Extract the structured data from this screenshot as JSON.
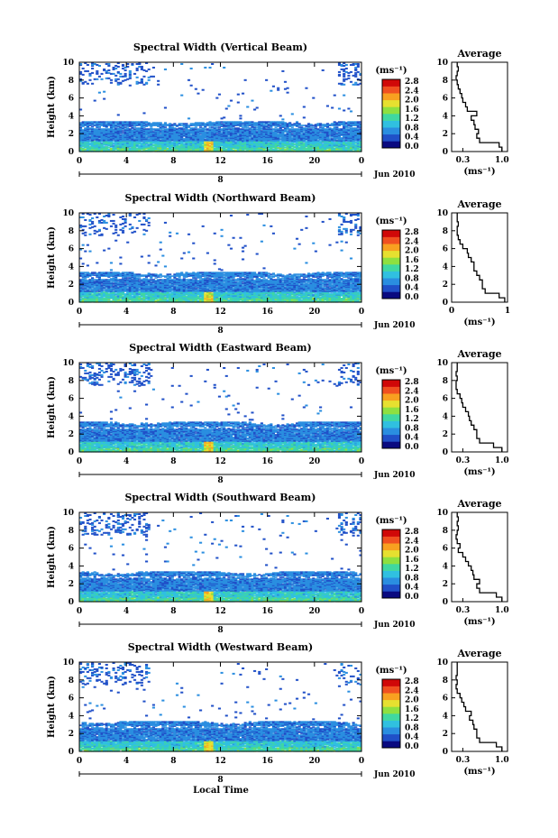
{
  "figure": {
    "x_axis_label": "Local Time",
    "x_ticks": [
      "0",
      "4",
      "8",
      "12",
      "16",
      "20",
      "0"
    ],
    "date_tick": "8",
    "date_label": "Jun 2010",
    "y_axis_label": "Height (km)",
    "y_ticks": [
      "0",
      "2",
      "4",
      "6",
      "8",
      "10"
    ],
    "colorbar_unit": "(ms⁻¹)",
    "colorbar_ticks": [
      "0.0",
      "0.4",
      "0.8",
      "1.2",
      "1.6",
      "2.0",
      "2.4",
      "2.8"
    ],
    "colorbar_colors": [
      "#0a0a80",
      "#2050c8",
      "#2a8ee0",
      "#30c0e0",
      "#40d8a0",
      "#8ee040",
      "#e6e030",
      "#f8a020",
      "#f05020",
      "#d00808"
    ],
    "average_title": "Average",
    "average_xlabel": "(ms⁻¹)"
  },
  "chart_data": [
    {
      "type": "heatmap",
      "title": "Spectral Width (Vertical Beam)",
      "xlabel": "Local Time",
      "ylabel": "Height (km)",
      "xlim": [
        0,
        24
      ],
      "ylim": [
        0,
        10
      ],
      "clim": [
        0.0,
        2.8
      ],
      "profile": {
        "title": "Average",
        "xlabel": "(ms⁻¹)",
        "x_ticks": [
          "0.3",
          "1.0"
        ],
        "xlim": [
          0.1,
          1.1
        ],
        "height": [
          0,
          0.5,
          1,
          1.5,
          2,
          2.5,
          3,
          3.5,
          4,
          4.5,
          5,
          5.5,
          6,
          6.5,
          7,
          7.5,
          8,
          8.5,
          9,
          9.5
        ],
        "value": [
          1.0,
          0.95,
          0.6,
          0.55,
          0.58,
          0.52,
          0.5,
          0.45,
          0.55,
          0.38,
          0.35,
          0.3,
          0.28,
          0.25,
          0.22,
          0.2,
          0.18,
          0.2,
          0.22,
          0.2
        ]
      }
    },
    {
      "type": "heatmap",
      "title": "Spectral Width (Northward Beam)",
      "xlabel": "Local Time",
      "ylabel": "Height (km)",
      "xlim": [
        0,
        24
      ],
      "ylim": [
        0,
        10
      ],
      "clim": [
        0.0,
        2.8
      ],
      "profile": {
        "title": "Average",
        "xlabel": "(ms⁻¹)",
        "x_ticks": [
          "0",
          "1"
        ],
        "xlim": [
          0,
          1
        ],
        "height": [
          0,
          0.5,
          1,
          1.5,
          2,
          2.5,
          3,
          3.5,
          4,
          4.5,
          5,
          5.5,
          6,
          6.5,
          7,
          7.5,
          8,
          8.5,
          9,
          9.5
        ],
        "value": [
          0.95,
          0.85,
          0.6,
          0.55,
          0.55,
          0.5,
          0.45,
          0.4,
          0.4,
          0.35,
          0.3,
          0.28,
          0.2,
          0.15,
          0.12,
          0.1,
          0.1,
          0.12,
          0.1,
          0.1
        ]
      }
    },
    {
      "type": "heatmap",
      "title": "Spectral Width (Eastward Beam)",
      "xlabel": "Local Time",
      "ylabel": "Height (km)",
      "xlim": [
        0,
        24
      ],
      "ylim": [
        0,
        10
      ],
      "clim": [
        0.0,
        2.8
      ],
      "profile": {
        "title": "Average",
        "xlabel": "(ms⁻¹)",
        "x_ticks": [
          "0.3",
          "1.0"
        ],
        "xlim": [
          0.1,
          1.1
        ],
        "height": [
          0,
          0.5,
          1,
          1.5,
          2,
          2.5,
          3,
          3.5,
          4,
          4.5,
          5,
          5.5,
          6,
          6.5,
          7,
          7.5,
          8,
          8.5,
          9,
          9.5
        ],
        "value": [
          1.0,
          0.85,
          0.6,
          0.55,
          0.55,
          0.5,
          0.45,
          0.42,
          0.4,
          0.35,
          0.3,
          0.28,
          0.25,
          0.2,
          0.18,
          0.18,
          0.2,
          0.18,
          0.2,
          0.2
        ]
      }
    },
    {
      "type": "heatmap",
      "title": "Spectral Width (Southward Beam)",
      "xlabel": "Local Time",
      "ylabel": "Height (km)",
      "xlim": [
        0,
        24
      ],
      "ylim": [
        0,
        10
      ],
      "clim": [
        0.0,
        2.8
      ],
      "profile": {
        "title": "Average",
        "xlabel": "(ms⁻¹)",
        "x_ticks": [
          "0.3",
          "1.0"
        ],
        "xlim": [
          0.1,
          1.1
        ],
        "height": [
          0,
          0.5,
          1,
          1.5,
          2,
          2.5,
          3,
          3.5,
          4,
          4.5,
          5,
          5.5,
          6,
          6.5,
          7,
          7.5,
          8,
          8.5,
          9,
          9.5
        ],
        "value": [
          1.0,
          0.9,
          0.6,
          0.55,
          0.6,
          0.5,
          0.48,
          0.45,
          0.4,
          0.35,
          0.3,
          0.22,
          0.25,
          0.2,
          0.18,
          0.2,
          0.22,
          0.2,
          0.22,
          0.2
        ]
      }
    },
    {
      "type": "heatmap",
      "title": "Spectral Width (Westward Beam)",
      "xlabel": "Local Time",
      "ylabel": "Height (km)",
      "xlim": [
        0,
        24
      ],
      "ylim": [
        0,
        10
      ],
      "clim": [
        0.0,
        2.8
      ],
      "profile": {
        "title": "Average",
        "xlabel": "(ms⁻¹)",
        "x_ticks": [
          "0.3",
          "1.0"
        ],
        "xlim": [
          0.1,
          1.1
        ],
        "height": [
          0,
          0.5,
          1,
          1.5,
          2,
          2.5,
          3,
          3.5,
          4,
          4.5,
          5,
          5.5,
          6,
          6.5,
          7,
          7.5,
          8,
          8.5,
          9,
          9.5
        ],
        "value": [
          1.0,
          0.9,
          0.6,
          0.55,
          0.55,
          0.5,
          0.48,
          0.42,
          0.45,
          0.35,
          0.32,
          0.28,
          0.25,
          0.2,
          0.18,
          0.2,
          0.18,
          0.2,
          0.2,
          0.2
        ]
      }
    }
  ]
}
